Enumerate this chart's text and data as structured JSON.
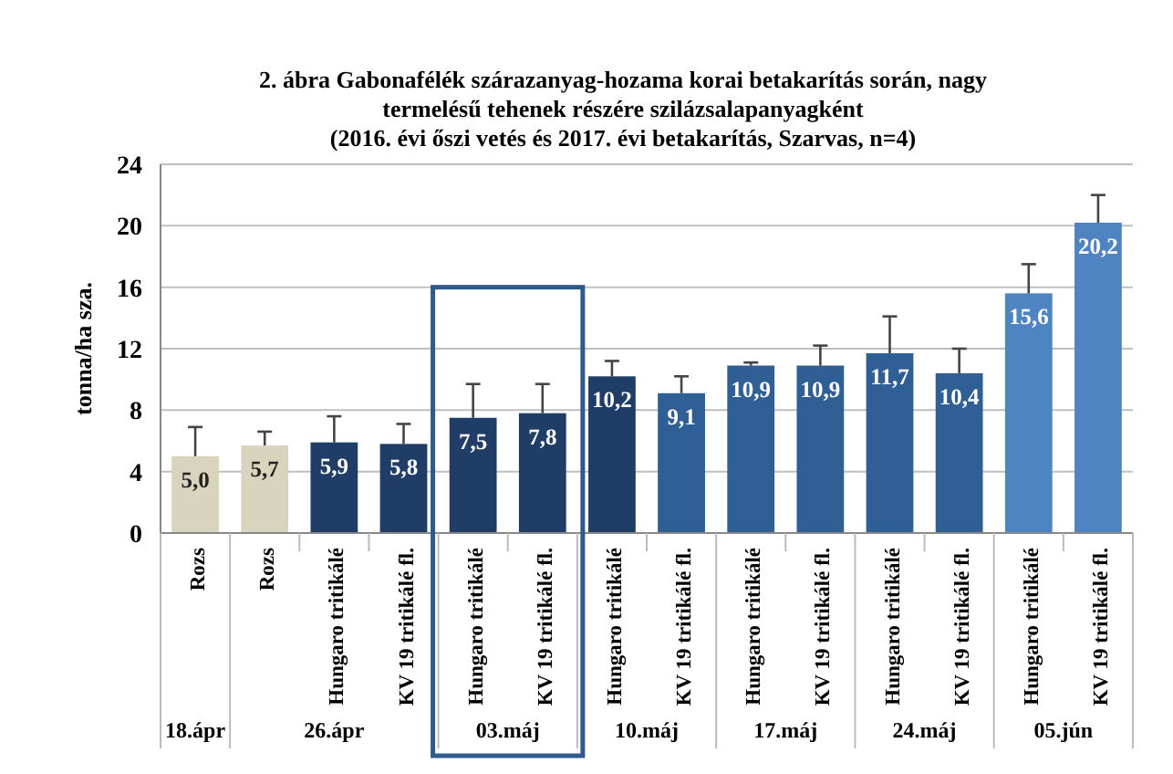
{
  "chart_data": {
    "type": "bar",
    "title": "2. ábra  Gabonafélék szárazanyag-hozama  korai betakarítás során,  nagy termelésű tehenek részére szilázsalapanyagként",
    "subtitle": "(2016.  évi őszi vetés és 2017. évi betakarítás,  Szarvas,  n=4)",
    "ylabel": "tonna/ha sza.",
    "categories": [
      "Rozs",
      "Rozs",
      "Hungaro tritikálé",
      "KV 19 tritikálé fl.",
      "Hungaro tritikálé",
      "KV 19 tritikálé fl.",
      "Hungaro tritikálé",
      "KV 19 tritikálé fl.",
      "Hungaro tritikálé",
      "KV 19 tritikálé fl.",
      "Hungaro tritikálé",
      "KV 19 tritikálé fl.",
      "Hungaro tritikálé",
      "KV 19 tritikálé fl."
    ],
    "values": [
      5.0,
      5.7,
      5.9,
      5.8,
      7.5,
      7.8,
      10.2,
      9.1,
      10.9,
      10.9,
      11.7,
      10.4,
      15.6,
      20.2
    ],
    "errors": [
      [
        5.0,
        6.9
      ],
      [
        5.7,
        6.6
      ],
      [
        5.9,
        7.6
      ],
      [
        5.8,
        7.1
      ],
      [
        7.5,
        9.7
      ],
      [
        7.8,
        9.7
      ],
      [
        10.2,
        11.2
      ],
      [
        9.1,
        10.2
      ],
      [
        10.9,
        11.1
      ],
      [
        10.9,
        12.2
      ],
      [
        11.7,
        14.1
      ],
      [
        10.4,
        12.0
      ],
      [
        15.6,
        17.5
      ],
      [
        20.2,
        22.0
      ]
    ],
    "colors": [
      "#d9d4bd",
      "#d9d4bd",
      "#1f3d66",
      "#1f3d66",
      "#1f3d66",
      "#1f3d66",
      "#1f3d66",
      "#2f5f95",
      "#2f5f95",
      "#2f5f95",
      "#2f5f95",
      "#2f5f95",
      "#4f84c2",
      "#4f84c2"
    ],
    "value_labels": [
      "5,0",
      "5,7",
      "5,9",
      "5,8",
      "7,5",
      "7,8",
      "10,2",
      "9,1",
      "10,9",
      "10,9",
      "11,7",
      "10,4",
      "15,6",
      "20,2"
    ],
    "ylim": [
      0,
      24
    ],
    "yticks": [
      0,
      4,
      8,
      12,
      16,
      20,
      24
    ],
    "grid": "y",
    "annotations": [
      "18.ápr",
      "26.ápr",
      "03.máj",
      "10.máj",
      "17.máj",
      "24.máj",
      "05.jún"
    ]
  }
}
